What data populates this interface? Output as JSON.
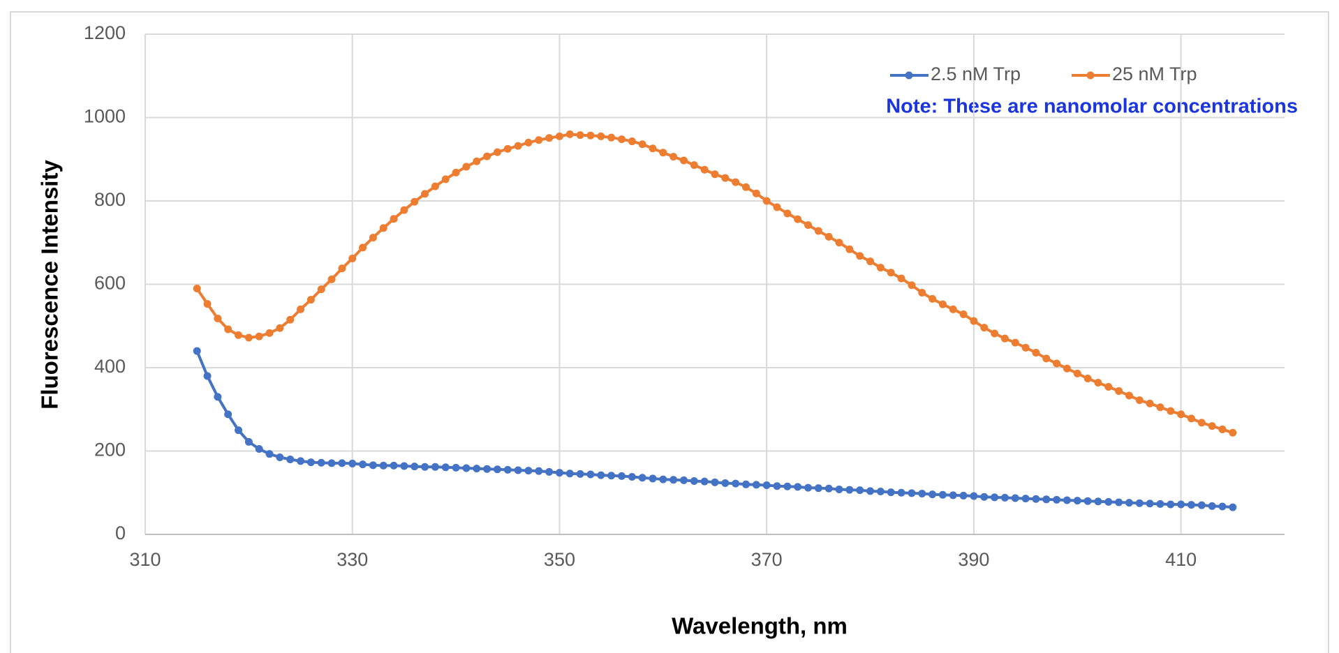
{
  "chart_data": {
    "type": "line",
    "xlabel": "Wavelength, nm",
    "ylabel": "Fluorescence Intensity",
    "annotation": "Note:  These are nanomolar concentrations",
    "x": [
      315,
      316,
      317,
      318,
      319,
      320,
      321,
      322,
      323,
      324,
      325,
      326,
      327,
      328,
      329,
      330,
      331,
      332,
      333,
      334,
      335,
      336,
      337,
      338,
      339,
      340,
      341,
      342,
      343,
      344,
      345,
      346,
      347,
      348,
      349,
      350,
      351,
      352,
      353,
      354,
      355,
      356,
      357,
      358,
      359,
      360,
      361,
      362,
      363,
      364,
      365,
      366,
      367,
      368,
      369,
      370,
      371,
      372,
      373,
      374,
      375,
      376,
      377,
      378,
      379,
      380,
      381,
      382,
      383,
      384,
      385,
      386,
      387,
      388,
      389,
      390,
      391,
      392,
      393,
      394,
      395,
      396,
      397,
      398,
      399,
      400,
      401,
      402,
      403,
      404,
      405,
      406,
      407,
      408,
      409,
      410,
      411,
      412,
      413,
      414,
      415
    ],
    "series": [
      {
        "name": "2.5 nM Trp",
        "color": "#4472c4",
        "values": [
          440,
          380,
          330,
          288,
          250,
          222,
          205,
          193,
          185,
          180,
          176,
          173,
          172,
          171,
          171,
          170,
          168,
          166,
          165,
          165,
          164,
          163,
          162,
          162,
          161,
          160,
          159,
          158,
          157,
          156,
          155,
          154,
          153,
          152,
          150,
          148,
          146,
          145,
          144,
          142,
          141,
          140,
          138,
          136,
          134,
          132,
          131,
          130,
          128,
          127,
          125,
          123,
          122,
          120,
          119,
          118,
          116,
          115,
          114,
          112,
          111,
          110,
          108,
          107,
          106,
          104,
          103,
          101,
          100,
          99,
          98,
          96,
          95,
          94,
          93,
          92,
          90,
          89,
          88,
          87,
          86,
          85,
          84,
          83,
          82,
          81,
          80,
          79,
          78,
          77,
          76,
          75,
          74,
          73,
          72,
          72,
          71,
          70,
          68,
          67,
          65
        ]
      },
      {
        "name": "25 nM Trp",
        "color": "#ed7d31",
        "values": [
          590,
          553,
          518,
          492,
          478,
          472,
          475,
          483,
          495,
          515,
          540,
          563,
          588,
          612,
          638,
          662,
          688,
          712,
          735,
          757,
          778,
          798,
          817,
          835,
          852,
          868,
          882,
          895,
          907,
          917,
          925,
          932,
          940,
          946,
          951,
          955,
          960,
          958,
          957,
          955,
          952,
          948,
          943,
          936,
          926,
          916,
          906,
          897,
          886,
          875,
          864,
          855,
          845,
          833,
          818,
          800,
          785,
          770,
          756,
          742,
          728,
          714,
          700,
          684,
          668,
          655,
          640,
          628,
          614,
          598,
          580,
          565,
          552,
          540,
          528,
          512,
          496,
          482,
          470,
          460,
          448,
          436,
          422,
          410,
          398,
          386,
          374,
          364,
          354,
          344,
          333,
          322,
          314,
          305,
          296,
          288,
          278,
          268,
          260,
          252,
          244
        ]
      }
    ],
    "xlim": [
      310,
      420
    ],
    "xticks": [
      310,
      330,
      350,
      370,
      390,
      410
    ],
    "ylim": [
      0,
      1200
    ],
    "yticks": [
      0,
      200,
      400,
      600,
      800,
      1000,
      1200
    ],
    "grid": true,
    "legend": "top-right"
  }
}
